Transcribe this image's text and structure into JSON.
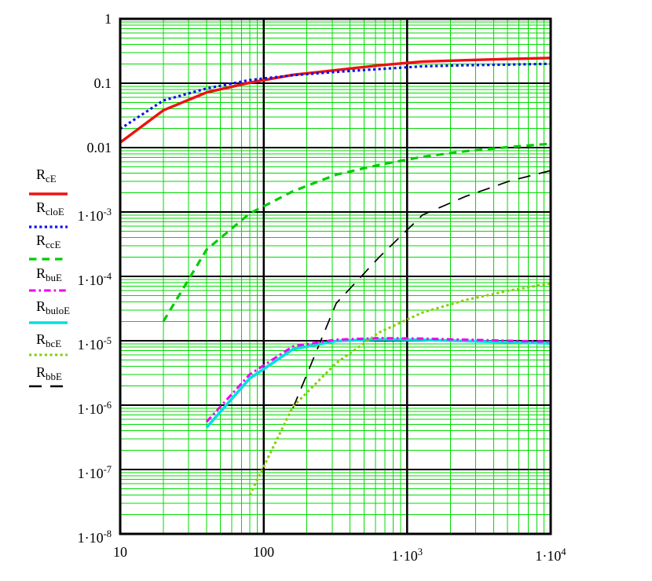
{
  "chart_data": {
    "type": "line",
    "title": "",
    "xlabel": "",
    "ylabel": "",
    "x_scale": "log",
    "y_scale": "log",
    "xlim": [
      10,
      10000
    ],
    "ylim": [
      1e-08,
      1
    ],
    "grid": "on",
    "grid_minor_color": "#00DB00",
    "axis_color": "#000000",
    "background_color": "#FFFFFF",
    "legend_position": "left",
    "x_ticks": [
      {
        "value": 10,
        "label": "10"
      },
      {
        "value": 100,
        "label": "100"
      },
      {
        "value": 1000,
        "label": "1·10^3"
      },
      {
        "value": 10000,
        "label": "1·10^4"
      }
    ],
    "y_ticks": [
      {
        "value": 1,
        "label": "1"
      },
      {
        "value": 0.1,
        "label": "0.1"
      },
      {
        "value": 0.01,
        "label": "0.01"
      },
      {
        "value": 0.001,
        "label": "1·10^-3"
      },
      {
        "value": 0.0001,
        "label": "1·10^-4"
      },
      {
        "value": 1e-05,
        "label": "1·10^-5"
      },
      {
        "value": 1e-06,
        "label": "1·10^-6"
      },
      {
        "value": 1e-07,
        "label": "1·10^-7"
      },
      {
        "value": 1e-08,
        "label": "1·10^-8"
      }
    ],
    "series": [
      {
        "id": "RcE",
        "legend_base": "R",
        "legend_sub": "cE",
        "color": "#EE1111",
        "line_style": "solid",
        "width": 3.4,
        "points": [
          [
            10,
            0.012
          ],
          [
            20,
            0.038
          ],
          [
            40,
            0.072
          ],
          [
            80,
            0.102
          ],
          [
            160,
            0.135
          ],
          [
            320,
            0.16
          ],
          [
            640,
            0.19
          ],
          [
            1280,
            0.217
          ],
          [
            2560,
            0.228
          ],
          [
            5120,
            0.238
          ],
          [
            10000,
            0.247
          ]
        ]
      },
      {
        "id": "RcloE",
        "legend_base": "R",
        "legend_sub": "cloE",
        "color": "#1111EE",
        "line_style": "dot",
        "width": 3.2,
        "points": [
          [
            10,
            0.0195
          ],
          [
            20,
            0.054
          ],
          [
            40,
            0.083
          ],
          [
            80,
            0.112
          ],
          [
            160,
            0.133
          ],
          [
            320,
            0.15
          ],
          [
            640,
            0.166
          ],
          [
            1280,
            0.183
          ],
          [
            2560,
            0.19
          ],
          [
            5120,
            0.195
          ],
          [
            10000,
            0.2
          ]
        ]
      },
      {
        "id": "RccE",
        "legend_base": "R",
        "legend_sub": "ccE",
        "color": "#00CC00",
        "line_style": "dash",
        "width": 3.2,
        "points": [
          [
            20,
            2e-05
          ],
          [
            40,
            0.00026
          ],
          [
            80,
            0.00095
          ],
          [
            160,
            0.0021
          ],
          [
            320,
            0.0038
          ],
          [
            640,
            0.0054
          ],
          [
            1280,
            0.0072
          ],
          [
            2560,
            0.0088
          ],
          [
            5120,
            0.0102
          ],
          [
            10000,
            0.0115
          ]
        ]
      },
      {
        "id": "RbuE",
        "legend_base": "R",
        "legend_sub": "buE",
        "color": "#EE00EE",
        "line_style": "dashdot",
        "width": 3.0,
        "points": [
          [
            40,
            5.5e-07
          ],
          [
            80,
            3e-06
          ],
          [
            160,
            8.2e-06
          ],
          [
            320,
            1.04e-05
          ],
          [
            640,
            1.1e-05
          ],
          [
            1280,
            1.08e-05
          ],
          [
            2560,
            1.04e-05
          ],
          [
            5120,
            1e-05
          ],
          [
            10000,
            9.7e-06
          ]
        ]
      },
      {
        "id": "RbuloE",
        "legend_base": "R",
        "legend_sub": "buloE",
        "color": "#00E0E0",
        "line_style": "solid",
        "width": 3.6,
        "points": [
          [
            40,
            4.5e-07
          ],
          [
            80,
            2.6e-06
          ],
          [
            160,
            7.4e-06
          ],
          [
            320,
            9.9e-06
          ],
          [
            640,
            1.05e-05
          ],
          [
            1280,
            1.03e-05
          ],
          [
            2560,
            9.9e-06
          ],
          [
            5120,
            9.5e-06
          ],
          [
            10000,
            9.1e-06
          ]
        ]
      },
      {
        "id": "RbcE",
        "legend_base": "R",
        "legend_sub": "bcE",
        "color": "#86CF00",
        "line_style": "dot",
        "width": 3.0,
        "points": [
          [
            80,
            4e-08
          ],
          [
            160,
            9.5e-07
          ],
          [
            320,
            4.5e-06
          ],
          [
            640,
            1.35e-05
          ],
          [
            1280,
            2.75e-05
          ],
          [
            2560,
            4.3e-05
          ],
          [
            5120,
            6e-05
          ],
          [
            10000,
            7.8e-05
          ]
        ]
      },
      {
        "id": "RbbE",
        "legend_base": "R",
        "legend_sub": "bbE",
        "color": "#000000",
        "line_style": "longdash",
        "width": 1.7,
        "points": [
          [
            160,
            9e-07
          ],
          [
            320,
            3.8e-05
          ],
          [
            640,
            0.0002
          ],
          [
            1280,
            0.0009
          ],
          [
            2560,
            0.00175
          ],
          [
            5120,
            0.003
          ],
          [
            10000,
            0.0044
          ]
        ]
      }
    ],
    "draw_order": [
      "RccE",
      "RbbE",
      "RbuloE",
      "RbuE",
      "RbcE",
      "RcE",
      "RcloE"
    ]
  }
}
